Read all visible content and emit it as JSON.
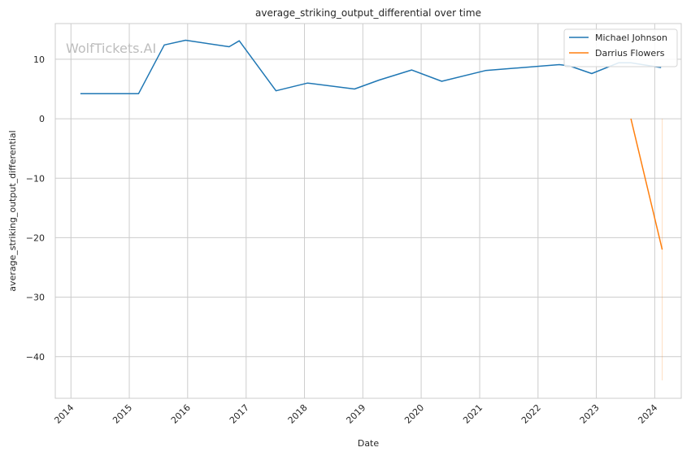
{
  "watermark": "WolfTickets.AI",
  "chart_data": {
    "type": "line",
    "title": "average_striking_output_differential over time",
    "xlabel": "Date",
    "ylabel": "average_striking_output_differential",
    "x_ticks": [
      "2014",
      "2015",
      "2016",
      "2017",
      "2018",
      "2019",
      "2020",
      "2021",
      "2022",
      "2023",
      "2024"
    ],
    "y_ticks": [
      10,
      0,
      -10,
      -20,
      -30,
      -40
    ],
    "xlim": [
      "2013-09-25",
      "2024-06-15"
    ],
    "ylim": [
      -47,
      16
    ],
    "grid": true,
    "legend_position": "top-right",
    "series": [
      {
        "name": "Michael Johnson",
        "color": "#1f77b4",
        "points": [
          {
            "x": "2014-03-01",
            "y": 4.2
          },
          {
            "x": "2015-02-28",
            "y": 4.2
          },
          {
            "x": "2015-08-08",
            "y": 12.4
          },
          {
            "x": "2015-12-19",
            "y": 13.2
          },
          {
            "x": "2016-09-17",
            "y": 12.1
          },
          {
            "x": "2016-11-19",
            "y": 13.1
          },
          {
            "x": "2017-07-07",
            "y": 4.7
          },
          {
            "x": "2018-01-20",
            "y": 6.0
          },
          {
            "x": "2018-11-10",
            "y": 5.0
          },
          {
            "x": "2019-04-13",
            "y": 6.5
          },
          {
            "x": "2019-11-02",
            "y": 8.2
          },
          {
            "x": "2020-05-09",
            "y": 6.3
          },
          {
            "x": "2021-02-06",
            "y": 8.1
          },
          {
            "x": "2022-05-14",
            "y": 9.1
          },
          {
            "x": "2022-07-16",
            "y": 8.9
          },
          {
            "x": "2022-12-03",
            "y": 7.6
          },
          {
            "x": "2023-05-20",
            "y": 9.4
          },
          {
            "x": "2023-08-05",
            "y": 9.4
          },
          {
            "x": "2024-02-10",
            "y": 8.6
          }
        ]
      },
      {
        "name": "Darrius Flowers",
        "color": "#ff7f0e",
        "points": [
          {
            "x": "2023-08-05",
            "y": 0.0
          },
          {
            "x": "2024-02-17",
            "y": -22.0
          }
        ]
      }
    ],
    "faint_band": {
      "color": "#ff7f0e",
      "x": "2024-02-17",
      "y_range": [
        -44,
        0
      ]
    }
  }
}
